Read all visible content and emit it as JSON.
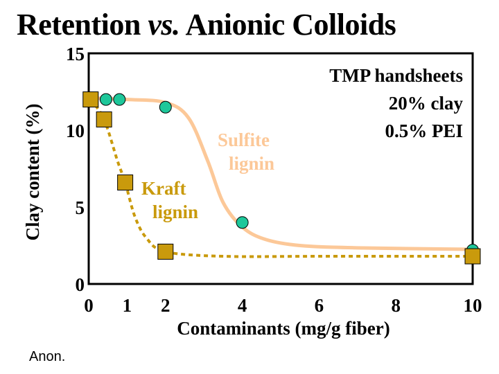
{
  "title": {
    "main": "Retention",
    "vs": "vs.",
    "rest": "Anionic Colloids"
  },
  "source": "Anon.",
  "chart_data": {
    "type": "scatter",
    "xlabel": "Contaminants  (mg/g fiber)",
    "ylabel": "Clay content  (%)",
    "xlim": [
      0,
      10
    ],
    "ylim": [
      0,
      15
    ],
    "xticks": [
      0,
      1,
      2,
      4,
      6,
      8,
      10
    ],
    "yticks": [
      0,
      5,
      10,
      15
    ],
    "annotation": [
      "TMP handsheets",
      "20% clay",
      "0.5% PEI"
    ],
    "series": [
      {
        "name": "Sulfite lignin",
        "label_lines": [
          "Sulfite",
          "lignin"
        ],
        "marker": "circle",
        "marker_color": "#1ec79a",
        "line_color": "#fcc898",
        "line_style": "solid",
        "points": [
          [
            0.45,
            12.0
          ],
          [
            0.8,
            12.0
          ],
          [
            2.0,
            11.5
          ],
          [
            4.0,
            4.0
          ],
          [
            10.0,
            2.2
          ]
        ],
        "curve": [
          [
            0.0,
            12.1
          ],
          [
            1.0,
            12.0
          ],
          [
            2.0,
            11.8
          ],
          [
            2.6,
            10.8
          ],
          [
            3.1,
            8.0
          ],
          [
            3.5,
            5.3
          ],
          [
            4.0,
            3.7
          ],
          [
            4.6,
            2.9
          ],
          [
            5.5,
            2.5
          ],
          [
            7.0,
            2.35
          ],
          [
            10.0,
            2.25
          ]
        ]
      },
      {
        "name": "Kraft lignin",
        "label_lines": [
          "Kraft",
          "lignin"
        ],
        "marker": "square",
        "marker_color": "#c99a0c",
        "line_color": "#c99a0c",
        "line_style": "dotted",
        "points": [
          [
            0.05,
            12.0
          ],
          [
            0.4,
            10.7
          ],
          [
            0.95,
            6.6
          ],
          [
            2.0,
            2.1
          ],
          [
            10.0,
            1.8
          ]
        ],
        "curve": [
          [
            0.05,
            12.0
          ],
          [
            0.4,
            10.7
          ],
          [
            0.75,
            8.0
          ],
          [
            0.95,
            6.6
          ],
          [
            1.2,
            4.4
          ],
          [
            1.5,
            3.0
          ],
          [
            2.0,
            2.1
          ],
          [
            3.5,
            1.8
          ],
          [
            6.0,
            1.8
          ],
          [
            10.0,
            1.8
          ]
        ]
      }
    ]
  }
}
